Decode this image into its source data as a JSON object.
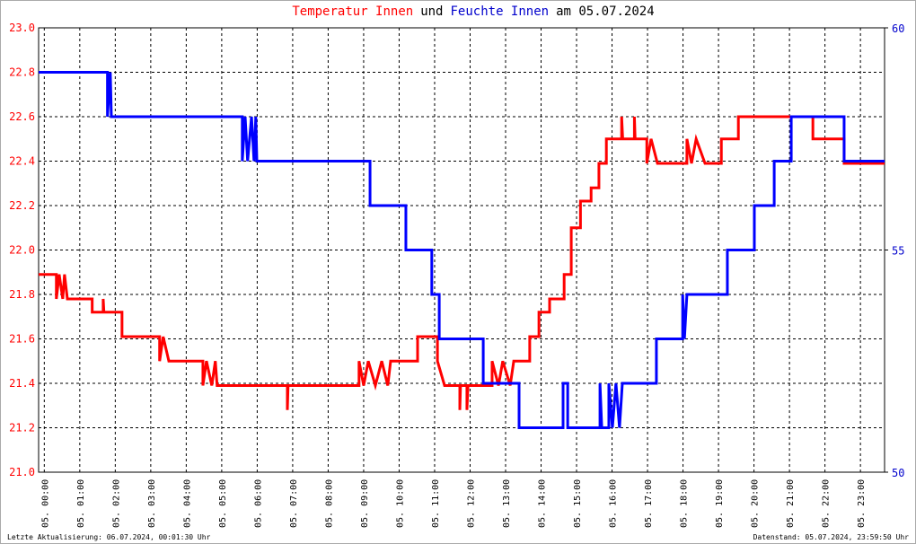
{
  "chart_data": {
    "type": "line",
    "title": [
      "Temperatur Innen",
      "und",
      "Feuchte Innen",
      "am 05.07.2024"
    ],
    "title_colors": [
      "#ff0000",
      "#000000",
      "#0000cc",
      "#000000"
    ],
    "footer_left": "Letzte Aktualisierung: 06.07.2024, 00:01:30 Uhr",
    "footer_right": "Datenstand: 05.07.2024, 23:59:50 Uhr",
    "xlim": [
      -0.16,
      23.68
    ],
    "xticks": [
      {
        "value": 0,
        "label": "05. 00:00"
      },
      {
        "value": 1,
        "label": "05. 01:00"
      },
      {
        "value": 2,
        "label": "05. 02:00"
      },
      {
        "value": 3,
        "label": "05. 03:00"
      },
      {
        "value": 4,
        "label": "05. 04:00"
      },
      {
        "value": 5,
        "label": "05. 05:00"
      },
      {
        "value": 6,
        "label": "05. 06:00"
      },
      {
        "value": 7,
        "label": "05. 07:00"
      },
      {
        "value": 8,
        "label": "05. 08:00"
      },
      {
        "value": 9,
        "label": "05. 09:00"
      },
      {
        "value": 10,
        "label": "05. 10:00"
      },
      {
        "value": 11,
        "label": "05. 11:00"
      },
      {
        "value": 12,
        "label": "05. 12:00"
      },
      {
        "value": 13,
        "label": "05. 13:00"
      },
      {
        "value": 14,
        "label": "05. 14:00"
      },
      {
        "value": 15,
        "label": "05. 15:00"
      },
      {
        "value": 16,
        "label": "05. 16:00"
      },
      {
        "value": 17,
        "label": "05. 17:00"
      },
      {
        "value": 18,
        "label": "05. 18:00"
      },
      {
        "value": 19,
        "label": "05. 19:00"
      },
      {
        "value": 20,
        "label": "05. 20:00"
      },
      {
        "value": 21,
        "label": "05. 21:00"
      },
      {
        "value": 22,
        "label": "05. 22:00"
      },
      {
        "value": 23,
        "label": "05. 23:00"
      }
    ],
    "ylim": [
      21.0,
      23.0
    ],
    "yticks": [
      {
        "value": 21.0,
        "label": "21.0"
      },
      {
        "value": 21.2,
        "label": "21.2"
      },
      {
        "value": 21.4,
        "label": "21.4"
      },
      {
        "value": 21.6,
        "label": "21.6"
      },
      {
        "value": 21.8,
        "label": "21.8"
      },
      {
        "value": 22.0,
        "label": "22.0"
      },
      {
        "value": 22.2,
        "label": "22.2"
      },
      {
        "value": 22.4,
        "label": "22.4"
      },
      {
        "value": 22.6,
        "label": "22.6"
      },
      {
        "value": 22.8,
        "label": "22.8"
      },
      {
        "value": 23.0,
        "label": "23.0"
      }
    ],
    "y2lim": [
      50,
      60
    ],
    "y2ticks": [
      50,
      55,
      60
    ],
    "y_color": "#ff0000",
    "y2_color": "#0000cc",
    "grid": true,
    "series": [
      {
        "color": "#ff0000",
        "x": [
          -0.16,
          0.34,
          0.34,
          0.42,
          0.52,
          0.57,
          0.65,
          1.35,
          1.35,
          1.66,
          1.66,
          1.68,
          2.19,
          2.19,
          3.25,
          3.25,
          3.35,
          3.51,
          4.47,
          4.47,
          4.57,
          4.72,
          4.82,
          4.87,
          6.85,
          6.85,
          6.87,
          8.87,
          8.87,
          9.0,
          9.13,
          9.33,
          9.51,
          9.68,
          9.76,
          10.52,
          10.52,
          11.08,
          11.08,
          11.28,
          11.71,
          11.71,
          11.73,
          11.91,
          11.91,
          11.94,
          12.62,
          12.62,
          12.8,
          12.92,
          13.13,
          13.23,
          13.68,
          13.68,
          13.94,
          13.94,
          14.24,
          14.24,
          14.65,
          14.65,
          14.85,
          14.85,
          15.11,
          15.11,
          15.41,
          15.41,
          15.63,
          15.63,
          15.84,
          15.84,
          16.27,
          16.27,
          16.3,
          16.63,
          16.63,
          16.65,
          16.98,
          16.98,
          17.1,
          17.28,
          18.11,
          18.11,
          18.24,
          18.37,
          18.62,
          19.08,
          19.08,
          19.56,
          19.56,
          21.66,
          21.66,
          22.54,
          22.54,
          23.68
        ],
        "values": [
          21.89,
          21.89,
          21.78,
          21.89,
          21.78,
          21.89,
          21.78,
          21.78,
          21.72,
          21.72,
          21.78,
          21.72,
          21.72,
          21.61,
          21.61,
          21.5,
          21.61,
          21.5,
          21.5,
          21.39,
          21.5,
          21.39,
          21.5,
          21.39,
          21.39,
          21.28,
          21.39,
          21.39,
          21.5,
          21.39,
          21.5,
          21.39,
          21.5,
          21.39,
          21.5,
          21.5,
          21.61,
          21.61,
          21.5,
          21.39,
          21.39,
          21.28,
          21.39,
          21.39,
          21.28,
          21.39,
          21.39,
          21.5,
          21.39,
          21.5,
          21.39,
          21.5,
          21.5,
          21.61,
          21.61,
          21.72,
          21.72,
          21.78,
          21.78,
          21.89,
          21.89,
          22.1,
          22.1,
          22.22,
          22.22,
          22.28,
          22.28,
          22.39,
          22.39,
          22.5,
          22.5,
          22.6,
          22.5,
          22.5,
          22.6,
          22.5,
          22.5,
          22.39,
          22.5,
          22.39,
          22.39,
          22.5,
          22.39,
          22.5,
          22.39,
          22.39,
          22.5,
          22.5,
          22.6,
          22.6,
          22.5,
          22.5,
          22.39,
          22.39
        ]
      },
      {
        "color": "#0000ff",
        "axis": "y2",
        "x": [
          -0.16,
          1.78,
          1.78,
          1.86,
          1.89,
          5.58,
          5.58,
          5.66,
          5.73,
          5.84,
          5.91,
          5.96,
          5.99,
          9.18,
          9.18,
          10.19,
          10.19,
          10.92,
          10.92,
          11.13,
          11.13,
          12.37,
          12.37,
          13.38,
          13.38,
          14.62,
          14.62,
          14.75,
          14.75,
          15.66,
          15.66,
          15.71,
          15.91,
          15.91,
          16.01,
          16.11,
          16.21,
          16.29,
          16.34,
          17.25,
          17.25,
          17.99,
          17.99,
          18.04,
          18.11,
          18.16,
          19.25,
          19.25,
          20.01,
          20.01,
          20.57,
          20.57,
          21.05,
          21.05,
          22.54,
          22.54,
          23.68
        ],
        "values": [
          59,
          59,
          58,
          59,
          58,
          58,
          57,
          58,
          57,
          58,
          57,
          58,
          57,
          57,
          56,
          56,
          55,
          55,
          54,
          54,
          53,
          53,
          52,
          52,
          51,
          51,
          52,
          52,
          51,
          51,
          52,
          51,
          51,
          52,
          51,
          52,
          51,
          52,
          52,
          52,
          53,
          53,
          54,
          53,
          54,
          54,
          54,
          55,
          55,
          56,
          56,
          57,
          57,
          58,
          58,
          57,
          57
        ]
      }
    ]
  }
}
